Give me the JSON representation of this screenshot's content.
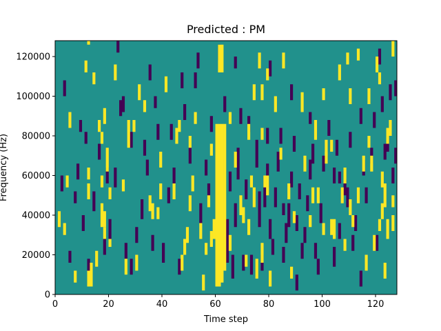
{
  "chart_data": {
    "type": "heatmap",
    "title": "Predicted : PM",
    "xlabel": "Time step",
    "ylabel": "Frequency (Hz)",
    "xlim": [
      0,
      128
    ],
    "ylim": [
      0,
      128000
    ],
    "x_ticks": [
      0,
      20,
      40,
      60,
      80,
      100,
      120
    ],
    "y_ticks": [
      0,
      20000,
      40000,
      60000,
      80000,
      100000,
      120000
    ],
    "n_time_steps": 128,
    "n_freq_bins": 64,
    "freq_bin_width_hz": 2000,
    "colormap": {
      "background": "#21918c",
      "low": "#440154",
      "high": "#fde725"
    },
    "cell_values": {
      "background": 0,
      "low": -1,
      "high": 1
    },
    "grid": false,
    "legend": "none",
    "high_segments": [
      [
        60,
        2,
        42
      ],
      [
        61,
        2,
        42
      ],
      [
        62,
        3,
        42
      ],
      [
        63,
        6,
        42
      ],
      [
        61,
        56,
        62
      ],
      [
        62,
        56,
        62
      ],
      [
        60,
        13,
        21
      ],
      [
        59,
        14,
        18
      ],
      [
        1,
        17,
        20
      ],
      [
        4,
        27,
        29
      ],
      [
        7,
        3,
        5
      ],
      [
        12,
        2,
        5
      ],
      [
        13,
        2,
        7
      ],
      [
        15,
        7,
        10
      ],
      [
        17,
        17,
        22
      ],
      [
        18,
        17,
        20
      ],
      [
        19,
        31,
        36
      ],
      [
        20,
        12,
        13
      ],
      [
        12,
        63,
        63
      ],
      [
        14,
        53,
        55
      ],
      [
        16,
        41,
        43
      ],
      [
        17,
        38,
        40
      ],
      [
        18,
        14,
        16
      ],
      [
        20,
        24,
        26
      ],
      [
        22,
        54,
        57
      ],
      [
        25,
        26,
        28
      ],
      [
        26,
        5,
        8
      ],
      [
        27,
        40,
        43
      ],
      [
        27,
        37,
        39
      ],
      [
        35,
        21,
        24
      ],
      [
        39,
        24,
        27
      ],
      [
        44,
        24,
        27
      ],
      [
        47,
        6,
        9
      ],
      [
        48,
        10,
        13
      ],
      [
        49,
        13,
        16
      ],
      [
        50,
        37,
        39
      ],
      [
        51,
        26,
        29
      ],
      [
        52,
        43,
        45
      ],
      [
        54,
        14,
        17
      ],
      [
        57,
        22,
        24
      ],
      [
        58,
        35,
        37
      ],
      [
        58,
        12,
        15
      ],
      [
        55,
        1,
        4
      ],
      [
        36,
        19,
        22
      ],
      [
        38,
        19,
        21
      ],
      [
        30,
        6,
        9
      ],
      [
        69,
        20,
        24
      ],
      [
        70,
        18,
        21
      ],
      [
        71,
        7,
        9
      ],
      [
        72,
        15,
        18
      ],
      [
        73,
        27,
        29
      ],
      [
        74,
        22,
        26
      ],
      [
        76,
        57,
        60
      ],
      [
        77,
        39,
        41
      ],
      [
        78,
        27,
        29
      ],
      [
        79,
        54,
        56
      ],
      [
        84,
        34,
        36
      ],
      [
        85,
        57,
        60
      ],
      [
        87,
        24,
        27
      ],
      [
        89,
        18,
        20
      ],
      [
        93,
        31,
        34
      ],
      [
        96,
        23,
        26
      ],
      [
        100,
        15,
        17
      ],
      [
        103,
        15,
        18
      ],
      [
        103,
        36,
        38
      ],
      [
        107,
        23,
        26
      ],
      [
        108,
        11,
        13
      ],
      [
        109,
        58,
        60
      ],
      [
        111,
        17,
        19
      ],
      [
        113,
        23,
        26
      ],
      [
        115,
        31,
        34
      ],
      [
        117,
        48,
        51
      ],
      [
        118,
        31,
        34
      ],
      [
        121,
        16,
        18
      ],
      [
        122,
        19,
        22
      ],
      [
        123,
        22,
        27
      ],
      [
        124,
        14,
        18
      ],
      [
        125,
        40,
        43
      ],
      [
        126,
        22,
        24
      ],
      [
        17,
        27,
        29
      ],
      [
        45,
        38,
        41
      ],
      [
        50,
        21,
        24
      ],
      [
        65,
        43,
        45
      ],
      [
        67,
        32,
        35
      ],
      [
        72,
        39,
        42
      ],
      [
        79,
        25,
        29
      ],
      [
        95,
        17,
        19
      ],
      [
        100,
        49,
        51
      ],
      [
        104,
        14,
        18
      ],
      [
        108,
        28,
        31
      ],
      [
        110,
        20,
        23
      ],
      [
        116,
        6,
        9
      ],
      [
        119,
        11,
        14
      ],
      [
        121,
        53,
        55
      ],
      [
        124,
        38,
        41
      ],
      [
        126,
        60,
        63
      ],
      [
        106,
        54,
        57
      ],
      [
        101,
        33,
        35
      ],
      [
        77,
        49,
        52
      ],
      [
        82,
        46,
        49
      ],
      [
        56,
        10,
        12
      ],
      [
        12,
        29,
        31
      ],
      [
        12,
        24,
        27
      ],
      [
        39,
        32,
        35
      ],
      [
        3,
        15,
        17
      ],
      [
        31,
        49,
        52
      ],
      [
        11,
        56,
        58
      ],
      [
        41,
        51,
        54
      ],
      [
        29,
        41,
        43
      ],
      [
        74,
        49,
        52
      ],
      [
        98,
        23,
        26
      ],
      [
        122,
        27,
        30
      ],
      [
        5,
        42,
        45
      ],
      [
        18,
        43,
        46
      ],
      [
        33,
        46,
        48
      ],
      [
        46,
        41,
        43
      ],
      [
        88,
        4,
        6
      ],
      [
        65,
        11,
        14
      ],
      [
        75,
        4,
        8
      ],
      [
        77,
        8,
        12
      ],
      [
        80,
        2,
        5
      ],
      [
        92,
        46,
        50
      ],
      [
        97,
        39,
        43
      ],
      [
        101,
        35,
        38
      ],
      [
        110,
        48,
        51
      ],
      [
        113,
        59,
        61
      ],
      [
        117,
        37,
        39
      ],
      [
        120,
        56,
        59
      ],
      [
        123,
        4,
        7
      ],
      [
        126,
        16,
        19
      ]
    ],
    "low_segments": [
      [
        64,
        8,
        18
      ],
      [
        66,
        4,
        9
      ],
      [
        67,
        17,
        22
      ],
      [
        68,
        29,
        36
      ],
      [
        69,
        43,
        46
      ],
      [
        70,
        6,
        9
      ],
      [
        71,
        24,
        28
      ],
      [
        72,
        41,
        44
      ],
      [
        75,
        32,
        38
      ],
      [
        76,
        17,
        25
      ],
      [
        77,
        6,
        9
      ],
      [
        78,
        22,
        29
      ],
      [
        79,
        27,
        32
      ],
      [
        80,
        14,
        18
      ],
      [
        81,
        10,
        13
      ],
      [
        82,
        22,
        26
      ],
      [
        83,
        31,
        35
      ],
      [
        84,
        38,
        41
      ],
      [
        85,
        8,
        11
      ],
      [
        86,
        13,
        17
      ],
      [
        87,
        17,
        22
      ],
      [
        88,
        27,
        30
      ],
      [
        89,
        36,
        39
      ],
      [
        90,
        1,
        4
      ],
      [
        91,
        24,
        27
      ],
      [
        92,
        9,
        12
      ],
      [
        93,
        13,
        16
      ],
      [
        94,
        21,
        24
      ],
      [
        95,
        29,
        33
      ],
      [
        96,
        33,
        37
      ],
      [
        97,
        9,
        12
      ],
      [
        98,
        5,
        8
      ],
      [
        99,
        18,
        22
      ],
      [
        3,
        50,
        53
      ],
      [
        5,
        8,
        10
      ],
      [
        8,
        29,
        32
      ],
      [
        10,
        16,
        19
      ],
      [
        12,
        4,
        8
      ],
      [
        14,
        21,
        25
      ],
      [
        16,
        34,
        37
      ],
      [
        18,
        10,
        13
      ],
      [
        20,
        14,
        18
      ],
      [
        22,
        27,
        31
      ],
      [
        24,
        45,
        48
      ],
      [
        26,
        9,
        12
      ],
      [
        28,
        37,
        40
      ],
      [
        30,
        13,
        16
      ],
      [
        32,
        19,
        23
      ],
      [
        34,
        30,
        33
      ],
      [
        36,
        11,
        14
      ],
      [
        38,
        39,
        42
      ],
      [
        40,
        8,
        12
      ],
      [
        42,
        23,
        26
      ],
      [
        44,
        28,
        31
      ],
      [
        46,
        5,
        8
      ],
      [
        48,
        44,
        47
      ],
      [
        50,
        33,
        36
      ],
      [
        52,
        52,
        55
      ],
      [
        54,
        18,
        22
      ],
      [
        56,
        30,
        33
      ],
      [
        58,
        41,
        44
      ],
      [
        62,
        30,
        33
      ],
      [
        65,
        26,
        30
      ],
      [
        100,
        31,
        34
      ],
      [
        102,
        40,
        43
      ],
      [
        104,
        28,
        31
      ],
      [
        106,
        14,
        17
      ],
      [
        108,
        25,
        28
      ],
      [
        110,
        37,
        40
      ],
      [
        112,
        16,
        19
      ],
      [
        114,
        43,
        46
      ],
      [
        116,
        23,
        26
      ],
      [
        118,
        33,
        36
      ],
      [
        120,
        11,
        14
      ],
      [
        122,
        46,
        49
      ],
      [
        124,
        36,
        39
      ],
      [
        126,
        28,
        31
      ],
      [
        127,
        50,
        53
      ],
      [
        28,
        5,
        8
      ],
      [
        109,
        22,
        26
      ],
      [
        11,
        38,
        40
      ],
      [
        33,
        35,
        38
      ],
      [
        47,
        52,
        55
      ],
      [
        73,
        5,
        9
      ],
      [
        104,
        7,
        11
      ],
      [
        114,
        2,
        5
      ],
      [
        9,
        41,
        43
      ],
      [
        35,
        54,
        57
      ],
      [
        23,
        61,
        63
      ],
      [
        121,
        58,
        61
      ],
      [
        63,
        46,
        49
      ],
      [
        80,
        55,
        58
      ],
      [
        88,
        49,
        52
      ],
      [
        90,
        16,
        19
      ],
      [
        106,
        28,
        30
      ],
      [
        2,
        26,
        29
      ],
      [
        7,
        23,
        25
      ],
      [
        19,
        28,
        31
      ],
      [
        25,
        46,
        49
      ],
      [
        37,
        47,
        49
      ],
      [
        43,
        39,
        42
      ],
      [
        53,
        57,
        60
      ],
      [
        57,
        24,
        27
      ],
      [
        61,
        59,
        62
      ],
      [
        67,
        57,
        59
      ],
      [
        79,
        38,
        41
      ],
      [
        85,
        20,
        22
      ],
      [
        95,
        43,
        45
      ],
      [
        105,
        35,
        38
      ],
      [
        111,
        11,
        14
      ],
      [
        115,
        30,
        33
      ],
      [
        119,
        42,
        45
      ],
      [
        123,
        34,
        37
      ],
      [
        125,
        49,
        52
      ],
      [
        127,
        33,
        36
      ]
    ]
  }
}
